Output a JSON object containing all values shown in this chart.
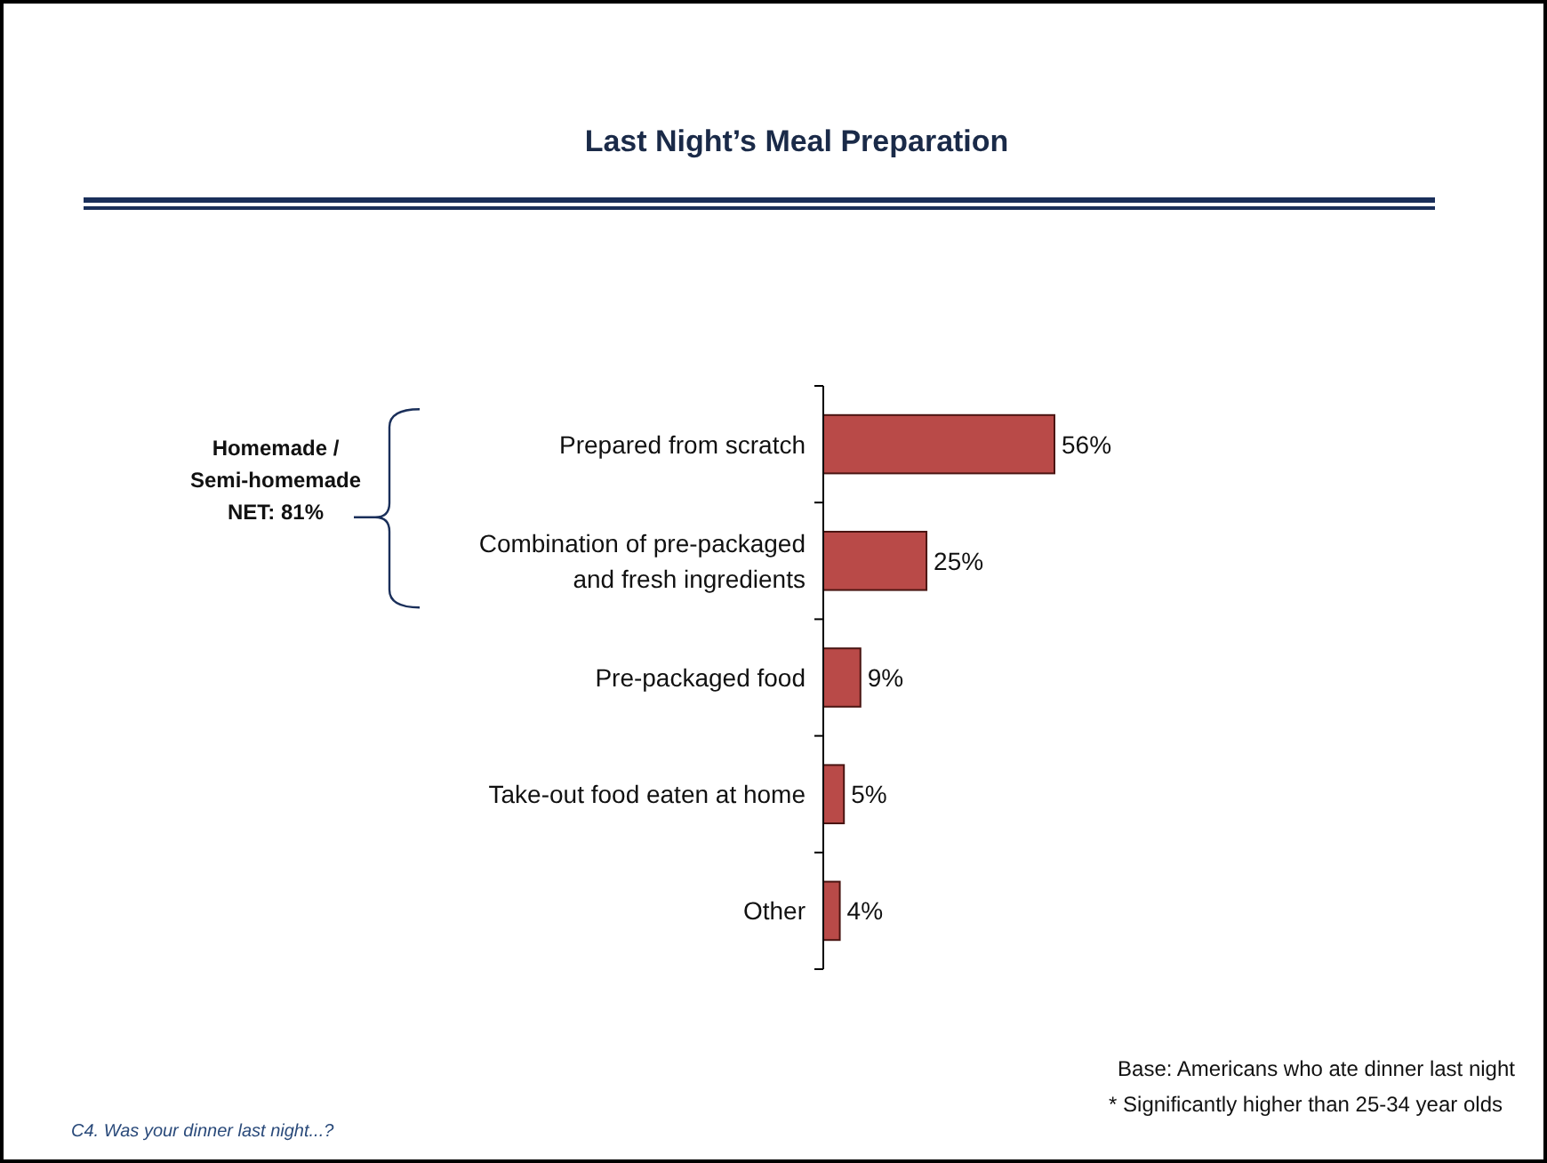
{
  "chart_data": {
    "type": "bar",
    "orientation": "horizontal",
    "title": "Last Night’s Meal Preparation",
    "categories": [
      "Prepared from scratch",
      "Combination of pre-packaged and fresh ingredients",
      "Pre-packaged food",
      "Take-out food eaten at home",
      "Other"
    ],
    "values": [
      56,
      25,
      9,
      5,
      4
    ],
    "value_labels": [
      "56%",
      "25%",
      "9%",
      "5%",
      "4%"
    ],
    "color": "#b94a48",
    "annotations": [
      "Homemade / Semi-homemade NET: 81%",
      "Base: Americans who ate dinner last night",
      "* Significantly higher than 25-34 year olds",
      "C4. Was your dinner last night...?"
    ]
  }
}
